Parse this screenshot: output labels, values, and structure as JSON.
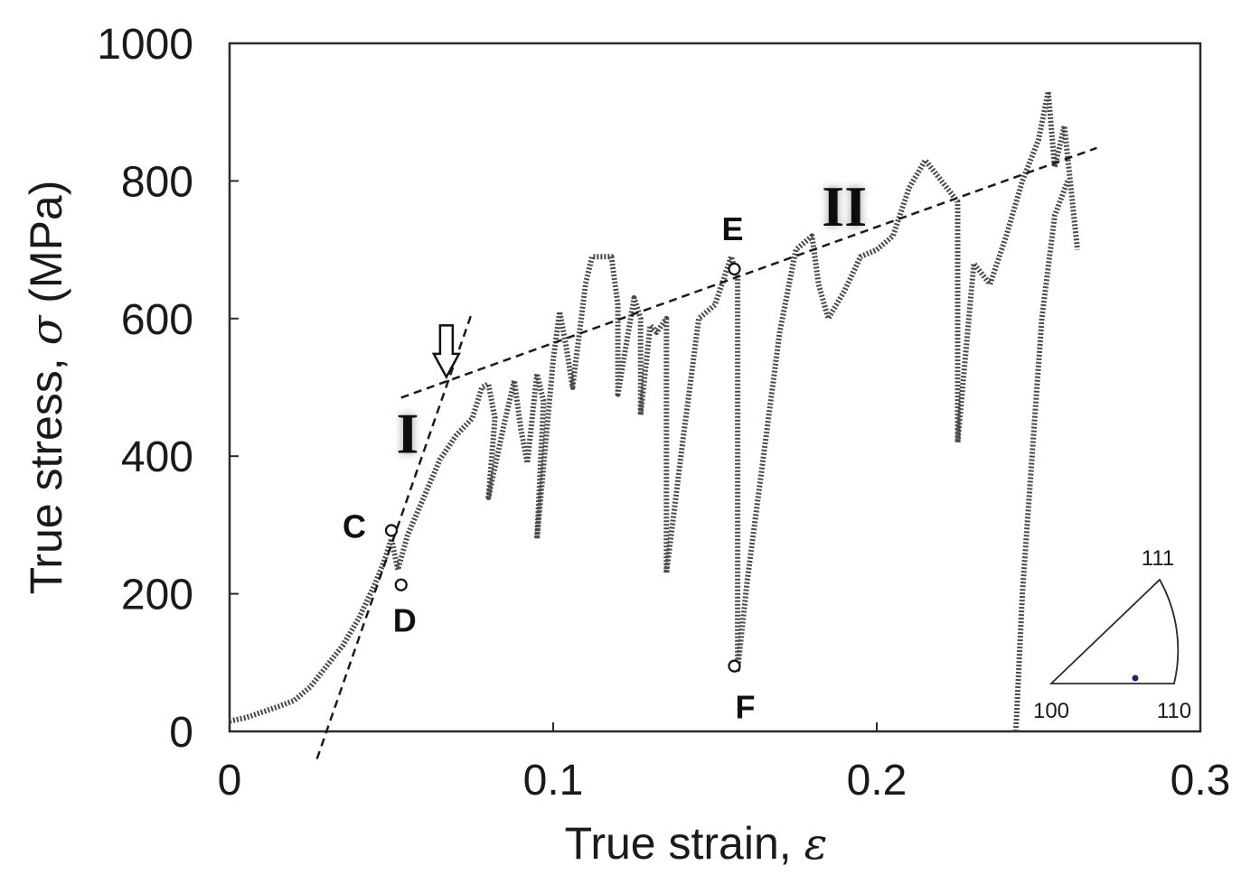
{
  "chart_data": {
    "type": "line",
    "xlabel": "True strain,",
    "xlabel_symbol": "ε",
    "ylabel": "True stress,",
    "ylabel_symbol": "σ",
    "ylabel_unit": "(MPa)",
    "xlim": [
      0,
      0.3
    ],
    "ylim": [
      0,
      1000
    ],
    "x_ticks": [
      "0",
      "0.1",
      "0.2",
      "0.3"
    ],
    "x_tick_values": [
      0,
      0.1,
      0.2,
      0.3
    ],
    "y_ticks": [
      "0",
      "200",
      "400",
      "600",
      "800",
      "1000"
    ],
    "y_tick_values": [
      0,
      200,
      400,
      600,
      800,
      1000
    ],
    "grid": false,
    "series": [
      {
        "values": [
          [
            0,
            15
          ],
          [
            0.005,
            20
          ],
          [
            0.01,
            28
          ],
          [
            0.015,
            36
          ],
          [
            0.02,
            45
          ],
          [
            0.025,
            65
          ],
          [
            0.03,
            95
          ],
          [
            0.035,
            125
          ],
          [
            0.04,
            165
          ],
          [
            0.045,
            215
          ],
          [
            0.048,
            250
          ],
          [
            0.05,
            280
          ],
          [
            0.052,
            235
          ],
          [
            0.055,
            285
          ],
          [
            0.06,
            340
          ],
          [
            0.065,
            395
          ],
          [
            0.07,
            430
          ],
          [
            0.075,
            455
          ],
          [
            0.078,
            500
          ],
          [
            0.08,
            505
          ],
          [
            0.082,
            455
          ],
          [
            0.08,
            340
          ],
          [
            0.085,
            450
          ],
          [
            0.088,
            510
          ],
          [
            0.09,
            440
          ],
          [
            0.092,
            390
          ],
          [
            0.095,
            520
          ],
          [
            0.097,
            480
          ],
          [
            0.095,
            280
          ],
          [
            0.1,
            540
          ],
          [
            0.102,
            610
          ],
          [
            0.104,
            560
          ],
          [
            0.106,
            500
          ],
          [
            0.11,
            650
          ],
          [
            0.112,
            690
          ],
          [
            0.118,
            690
          ],
          [
            0.12,
            620
          ],
          [
            0.12,
            490
          ],
          [
            0.125,
            630
          ],
          [
            0.127,
            600
          ],
          [
            0.127,
            460
          ],
          [
            0.13,
            590
          ],
          [
            0.132,
            580
          ],
          [
            0.135,
            600
          ],
          [
            0.135,
            230
          ],
          [
            0.14,
            420
          ],
          [
            0.145,
            600
          ],
          [
            0.15,
            620
          ],
          [
            0.155,
            690
          ],
          [
            0.157,
            660
          ],
          [
            0.157,
            90
          ],
          [
            0.16,
            220
          ],
          [
            0.165,
            400
          ],
          [
            0.17,
            580
          ],
          [
            0.175,
            700
          ],
          [
            0.18,
            720
          ],
          [
            0.182,
            650
          ],
          [
            0.185,
            600
          ],
          [
            0.19,
            640
          ],
          [
            0.195,
            690
          ],
          [
            0.2,
            700
          ],
          [
            0.205,
            720
          ],
          [
            0.21,
            790
          ],
          [
            0.215,
            830
          ],
          [
            0.22,
            800
          ],
          [
            0.225,
            770
          ],
          [
            0.225,
            420
          ],
          [
            0.23,
            680
          ],
          [
            0.235,
            650
          ],
          [
            0.24,
            720
          ],
          [
            0.245,
            800
          ],
          [
            0.25,
            860
          ],
          [
            0.253,
            930
          ],
          [
            0.255,
            820
          ],
          [
            0.258,
            880
          ],
          [
            0.26,
            790
          ],
          [
            0.262,
            700
          ]
        ]
      },
      {
        "values": [
          [
            0.243,
            0
          ],
          [
            0.245,
            200
          ],
          [
            0.248,
            400
          ],
          [
            0.251,
            600
          ],
          [
            0.255,
            750
          ],
          [
            0.259,
            800
          ]
        ]
      }
    ],
    "fit_lines": [
      {
        "label": "I",
        "x": [
          0.027,
          0.075
        ],
        "y": [
          -40,
          610
        ]
      },
      {
        "label": "II",
        "x": [
          0.053,
          0.268
        ],
        "y": [
          485,
          848
        ]
      }
    ],
    "point_labels": [
      {
        "label": "C",
        "x": 0.05,
        "y": 292
      },
      {
        "label": "D",
        "x": 0.053,
        "y": 213
      },
      {
        "label": "E",
        "x": 0.156,
        "y": 672
      },
      {
        "label": "F",
        "x": 0.156,
        "y": 95
      }
    ],
    "stage_labels": [
      {
        "label": "I",
        "x": 0.055,
        "y": 405
      },
      {
        "label": "II",
        "x": 0.19,
        "y": 735
      }
    ],
    "arrow": {
      "x": 0.067,
      "y_top": 590,
      "y_bottom": 515
    },
    "ipf_inset": {
      "labels": [
        "111",
        "100",
        "110"
      ],
      "position": "bottom-right"
    }
  },
  "colors": {
    "data": "#4a4a4a",
    "axis": "#2a2a2a",
    "fit_line": "#1a1a1a"
  }
}
